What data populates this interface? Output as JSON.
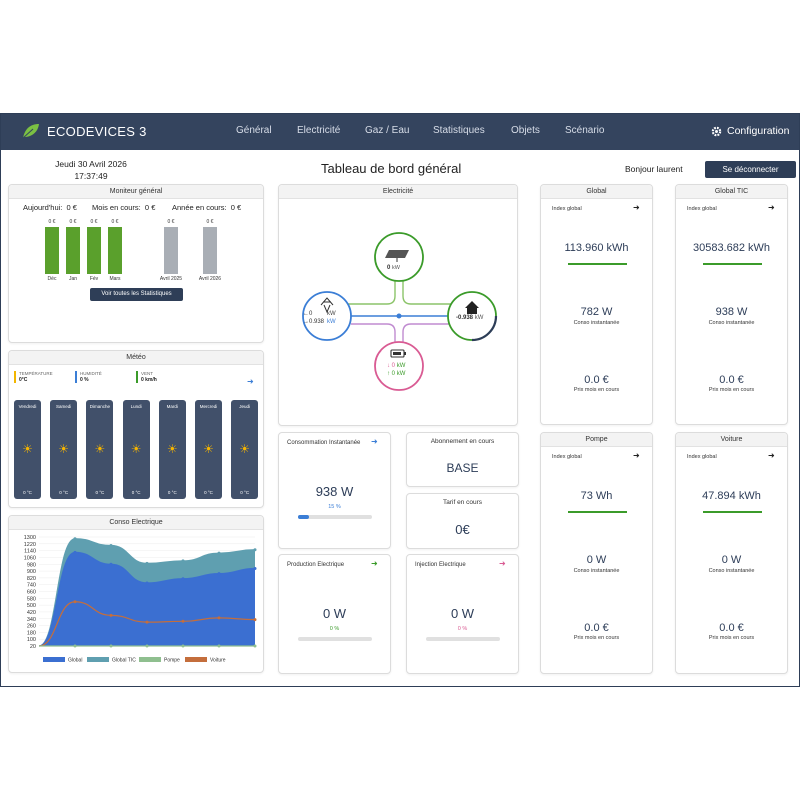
{
  "app": {
    "brand": "ECODEVICES 3",
    "configuration": "Configuration"
  },
  "nav": [
    "Général",
    "Electricité",
    "Gaz / Eau",
    "Statistiques",
    "Objets",
    "Scénario"
  ],
  "header": {
    "date": "Jeudi 30 Avril 2026",
    "time": "17:37:49",
    "title": "Tableau de bord général",
    "greeting": "Bonjour laurent",
    "logout": "Se déconnecter"
  },
  "monitor": {
    "title": "Moniteur général",
    "today": "Aujourd'hui:  0 €",
    "month": "Mois en cours:  0 €",
    "year": "Année en cours:  0 €",
    "bars": [
      {
        "label": "Déc",
        "value": "0 €",
        "color": "#5aa02c"
      },
      {
        "label": "Jan",
        "value": "0 €",
        "color": "#5aa02c"
      },
      {
        "label": "Fév",
        "value": "0 €",
        "color": "#5aa02c"
      },
      {
        "label": "Mars",
        "value": "0 €",
        "color": "#5aa02c"
      },
      {
        "label": "Avril 2025",
        "value": "0 €",
        "color": "#a9aeb5"
      },
      {
        "label": "Avril 2026",
        "value": "0 €",
        "color": "#a9aeb5"
      }
    ],
    "stats_button": "Voir toutes les Statistiques"
  },
  "meteo": {
    "title": "Météo",
    "temp_label": "TEMPÉRATURE",
    "temp_value": "0°C",
    "hum_label": "HUMIDITÉ",
    "hum_value": "0 %",
    "wind_label": "VENT",
    "wind_value": "0 km/h",
    "days": [
      {
        "name": "Vendredi",
        "temp": "0 °C"
      },
      {
        "name": "Samedi",
        "temp": "0 °C"
      },
      {
        "name": "Dimanche",
        "temp": "0 °C"
      },
      {
        "name": "Lundi",
        "temp": "0 °C"
      },
      {
        "name": "Mardi",
        "temp": "0 °C"
      },
      {
        "name": "Mercredi",
        "temp": "0 °C"
      },
      {
        "name": "Jeudi",
        "temp": "0 °C"
      }
    ]
  },
  "conso_chart": {
    "title": "Conso Electrique",
    "yticks": [
      "1300",
      "1220",
      "1140",
      "1060",
      "980",
      "900",
      "820",
      "740",
      "660",
      "580",
      "500",
      "420",
      "340",
      "260",
      "180",
      "100",
      "20"
    ],
    "legend": [
      {
        "name": "Global",
        "color": "#3b6fd1"
      },
      {
        "name": "Global TIC",
        "color": "#5f9fb0"
      },
      {
        "name": "Pompe",
        "color": "#8fbf8f"
      },
      {
        "name": "Voiture",
        "color": "#c46e3c"
      }
    ]
  },
  "chart_data": {
    "type": "area",
    "title": "Conso Electrique",
    "ylim": [
      20,
      1300
    ],
    "x": [
      0,
      1,
      2,
      3,
      4,
      5,
      6
    ],
    "series": [
      {
        "name": "Global TIC",
        "values": [
          20,
          1280,
          1200,
          990,
          1020,
          1110,
          1150
        ]
      },
      {
        "name": "Global",
        "values": [
          20,
          1120,
          980,
          760,
          810,
          870,
          930
        ]
      },
      {
        "name": "Voiture",
        "values": [
          20,
          540,
          380,
          300,
          310,
          350,
          330
        ]
      },
      {
        "name": "Pompe",
        "values": [
          20,
          20,
          20,
          20,
          20,
          20,
          20
        ]
      }
    ]
  },
  "electricite": {
    "title": "Electricité",
    "solar_value": "0",
    "solar_unit": "kW",
    "grid_in": "←0",
    "grid_out": "→0.938",
    "grid_unit": "kW",
    "house_value": "-0.938",
    "house_unit": "kW",
    "battery_in": "↓ 0",
    "battery_out": "↑ 0",
    "battery_unit": "kW"
  },
  "conso_inst": {
    "title": "Consommation Instantanée",
    "value": "938 W",
    "percent": "15 %",
    "fill": 0.15
  },
  "abonnement": {
    "title": "Abonnement en cours",
    "value": "BASE"
  },
  "tarif": {
    "title": "Tarif en cours",
    "value": "0€"
  },
  "production": {
    "title": "Production Electrique",
    "value": "0 W",
    "percent": "0 %"
  },
  "injection": {
    "title": "Injection Electrique",
    "value": "0 W",
    "percent": "0 %"
  },
  "meters": [
    {
      "title": "Global",
      "index_label": "Index global",
      "index": "113.960 kWh",
      "power": "782 W",
      "power_label": "Conso instantanée",
      "price": "0.0 €",
      "price_label": "Prix mois en cours"
    },
    {
      "title": "Global TIC",
      "index_label": "Index global",
      "index": "30583.682 kWh",
      "power": "938 W",
      "power_label": "Conso instantanée",
      "price": "0.0 €",
      "price_label": "Prix mois en cours"
    },
    {
      "title": "Pompe",
      "index_label": "Index global",
      "index": "73 Wh",
      "power": "0 W",
      "power_label": "Conso instantanée",
      "price": "0.0 €",
      "price_label": "Prix mois en cours"
    },
    {
      "title": "Voiture",
      "index_label": "Index global",
      "index": "47.894 kWh",
      "power": "0 W",
      "power_label": "Conso instantanée",
      "price": "0.0 €",
      "price_label": "Prix mois en cours"
    }
  ]
}
